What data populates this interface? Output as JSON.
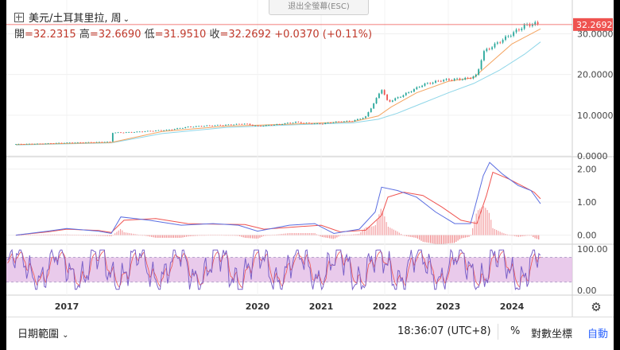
{
  "header": {
    "symbol": "美元/土耳其里拉",
    "interval": "周",
    "open_label": "開",
    "open": "=32.2315",
    "high_label": "高",
    "high": "=32.6690",
    "low_label": "低",
    "low": "=31.9510",
    "close_label": "收",
    "close": "=32.2692",
    "change": "+0.0370 (+0.11%)"
  },
  "exit_fullscreen": "退出全螢幕(ESC)",
  "footer": {
    "date_range": "日期範圍",
    "time": "18:36:07 (UTC+8)",
    "percent": "%",
    "log_scale": "對數坐標",
    "auto": "自動"
  },
  "colors": {
    "up": "#26a69a",
    "down": "#ef5350",
    "price_line": "#ef5350",
    "ma_slow": "#8ed6e8",
    "ma_fast": "#f4a460",
    "macd": "#5b6ee1",
    "signal": "#ef5350",
    "stoch_k": "#7b61c9",
    "stoch_band": "#e3bde6"
  },
  "chart_data": [
    {
      "type": "line",
      "name_hint": "price",
      "last_value_label": "32.2692",
      "y_ticks": [
        "0.0000",
        "10.0000",
        "20.0000",
        "30.0000"
      ],
      "ylim": [
        0,
        34
      ],
      "x_ticks": [
        {
          "label": "2017",
          "t": 2017.0
        },
        {
          "label": "2020",
          "t": 2020.0
        },
        {
          "label": "2021",
          "t": 2021.0
        },
        {
          "label": "2022",
          "t": 2022.0
        },
        {
          "label": "2023",
          "t": 2023.0
        },
        {
          "label": "2024",
          "t": 2024.0
        }
      ],
      "series": [
        {
          "key": "close",
          "x": [
            2016.2,
            2016.6,
            2016.9,
            2017.2,
            2017.5,
            2017.7,
            2017.72,
            2018.0,
            2018.3,
            2018.6,
            2018.9,
            2019.2,
            2019.5,
            2019.8,
            2020.0,
            2020.3,
            2020.6,
            2020.8,
            2021.0,
            2021.2,
            2021.5,
            2021.7,
            2021.85,
            2021.95,
            2022.05,
            2022.3,
            2022.6,
            2022.9,
            2023.1,
            2023.3,
            2023.45,
            2023.55,
            2023.7,
            2024.0,
            2024.2,
            2024.35,
            2024.45
          ],
          "values": [
            2.9,
            3.0,
            3.2,
            3.3,
            3.4,
            3.5,
            5.7,
            5.8,
            6.1,
            6.4,
            7.1,
            7.4,
            7.6,
            7.9,
            7.3,
            7.7,
            8.3,
            8.0,
            7.9,
            8.3,
            8.6,
            9.6,
            13.5,
            16.5,
            13.2,
            15.0,
            17.5,
            18.6,
            18.8,
            19.0,
            19.8,
            25.5,
            27.0,
            30.0,
            32.0,
            32.5,
            32.27
          ]
        },
        {
          "key": "ma_fast",
          "x": [
            2016.2,
            2017.7,
            2018.5,
            2019.5,
            2020.5,
            2021.5,
            2021.9,
            2022.1,
            2022.5,
            2023.0,
            2023.4,
            2023.6,
            2024.0,
            2024.45
          ],
          "values": [
            2.8,
            3.3,
            6.0,
            7.3,
            7.8,
            8.4,
            9.8,
            12.0,
            15.5,
            18.3,
            19.2,
            22.0,
            27.5,
            31.2
          ]
        },
        {
          "key": "ma_slow",
          "x": [
            2016.2,
            2017.7,
            2018.5,
            2019.5,
            2020.5,
            2021.5,
            2021.9,
            2022.2,
            2022.6,
            2023.0,
            2023.4,
            2023.8,
            2024.2,
            2024.45
          ],
          "values": [
            2.7,
            3.2,
            5.5,
            7.0,
            7.6,
            8.1,
            9.0,
            10.5,
            13.0,
            15.5,
            17.8,
            21.0,
            25.0,
            28.0
          ]
        }
      ]
    },
    {
      "type": "line",
      "name_hint": "macd",
      "y_ticks": [
        "0.00",
        "1.00",
        "2.00"
      ],
      "ylim": [
        -0.25,
        2.3
      ],
      "series": [
        {
          "key": "macd",
          "x": [
            2016.2,
            2016.7,
            2017.0,
            2017.5,
            2017.7,
            2017.85,
            2018.3,
            2018.8,
            2019.3,
            2019.7,
            2020.0,
            2020.5,
            2020.9,
            2021.2,
            2021.6,
            2021.85,
            2021.95,
            2022.2,
            2022.5,
            2022.8,
            2023.1,
            2023.35,
            2023.55,
            2023.65,
            2023.85,
            2024.1,
            2024.3,
            2024.45
          ],
          "values": [
            0.0,
            0.12,
            0.2,
            0.12,
            0.05,
            0.55,
            0.45,
            0.3,
            0.35,
            0.3,
            0.12,
            0.3,
            0.35,
            0.05,
            0.18,
            0.7,
            1.45,
            1.35,
            1.15,
            0.7,
            0.35,
            0.35,
            1.8,
            2.2,
            1.85,
            1.5,
            1.35,
            0.95
          ]
        },
        {
          "key": "signal",
          "x": [
            2016.2,
            2016.7,
            2017.0,
            2017.5,
            2017.7,
            2017.9,
            2018.4,
            2018.9,
            2019.4,
            2019.8,
            2020.1,
            2020.6,
            2021.0,
            2021.3,
            2021.7,
            2021.95,
            2022.05,
            2022.3,
            2022.6,
            2022.9,
            2023.2,
            2023.45,
            2023.6,
            2023.7,
            2023.95,
            2024.2,
            2024.35,
            2024.45
          ],
          "values": [
            0.0,
            0.1,
            0.18,
            0.14,
            0.08,
            0.45,
            0.5,
            0.35,
            0.33,
            0.32,
            0.18,
            0.25,
            0.3,
            0.1,
            0.15,
            0.6,
            1.15,
            1.3,
            1.2,
            0.85,
            0.45,
            0.35,
            1.2,
            1.9,
            1.7,
            1.45,
            1.3,
            1.1
          ]
        }
      ]
    },
    {
      "type": "line",
      "name_hint": "stochastic",
      "y_ticks": [
        "0.00",
        "100.00"
      ],
      "ylim": [
        -10,
        110
      ],
      "band": [
        20,
        80
      ]
    }
  ]
}
